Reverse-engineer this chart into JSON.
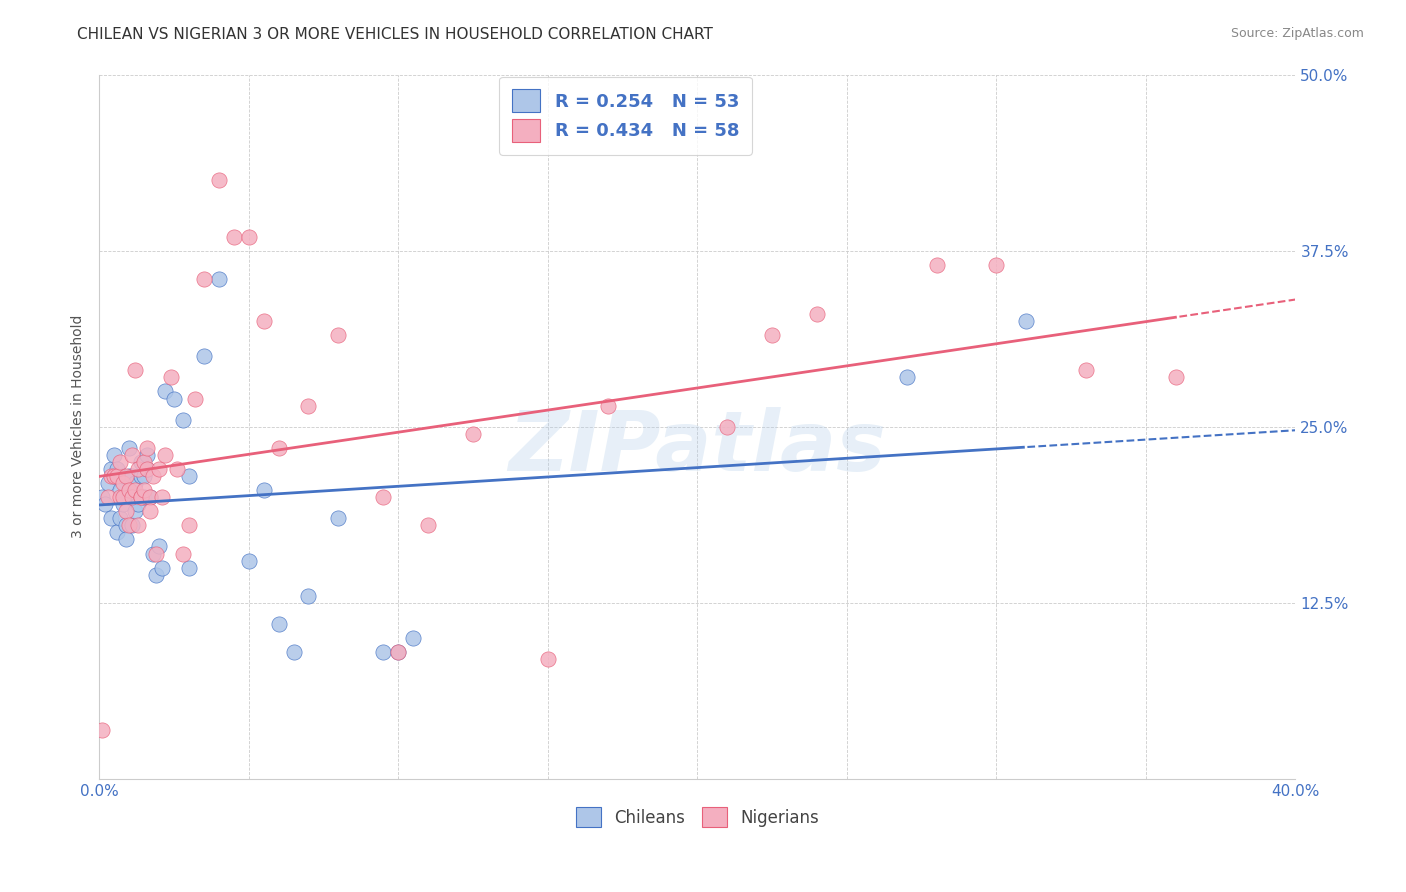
{
  "title": "CHILEAN VS NIGERIAN 3 OR MORE VEHICLES IN HOUSEHOLD CORRELATION CHART",
  "source": "Source: ZipAtlas.com",
  "ylabel": "3 or more Vehicles in Household",
  "watermark": "ZIPatlas",
  "xlim": [
    0.0,
    0.4
  ],
  "ylim": [
    0.0,
    0.5
  ],
  "xticks": [
    0.0,
    0.05,
    0.1,
    0.15,
    0.2,
    0.25,
    0.3,
    0.35,
    0.4
  ],
  "xticklabels": [
    "0.0%",
    "",
    "",
    "",
    "",
    "",
    "",
    "",
    "40.0%"
  ],
  "yticks": [
    0.0,
    0.125,
    0.25,
    0.375,
    0.5
  ],
  "yticklabels": [
    "",
    "12.5%",
    "25.0%",
    "37.5%",
    "50.0%"
  ],
  "chilean_R": 0.254,
  "chilean_N": 53,
  "nigerian_R": 0.434,
  "nigerian_N": 58,
  "chilean_color": "#aec6e8",
  "nigerian_color": "#f4afc0",
  "chilean_line_color": "#4472c4",
  "nigerian_line_color": "#e8607a",
  "legend_chilean_label": "R = 0.254   N = 53",
  "legend_nigerian_label": "R = 0.434   N = 58",
  "chilean_x": [
    0.001,
    0.002,
    0.003,
    0.004,
    0.004,
    0.005,
    0.005,
    0.006,
    0.006,
    0.007,
    0.007,
    0.008,
    0.008,
    0.009,
    0.009,
    0.01,
    0.01,
    0.01,
    0.011,
    0.011,
    0.012,
    0.012,
    0.013,
    0.013,
    0.014,
    0.014,
    0.015,
    0.015,
    0.016,
    0.016,
    0.017,
    0.018,
    0.019,
    0.02,
    0.021,
    0.022,
    0.025,
    0.028,
    0.03,
    0.03,
    0.035,
    0.04,
    0.05,
    0.055,
    0.06,
    0.065,
    0.07,
    0.08,
    0.095,
    0.1,
    0.105,
    0.27,
    0.31
  ],
  "chilean_y": [
    0.2,
    0.195,
    0.21,
    0.185,
    0.22,
    0.215,
    0.23,
    0.175,
    0.22,
    0.205,
    0.185,
    0.195,
    0.215,
    0.18,
    0.17,
    0.215,
    0.2,
    0.235,
    0.18,
    0.215,
    0.19,
    0.21,
    0.2,
    0.195,
    0.215,
    0.225,
    0.2,
    0.215,
    0.22,
    0.23,
    0.2,
    0.16,
    0.145,
    0.165,
    0.15,
    0.275,
    0.27,
    0.255,
    0.215,
    0.15,
    0.3,
    0.355,
    0.155,
    0.205,
    0.11,
    0.09,
    0.13,
    0.185,
    0.09,
    0.09,
    0.1,
    0.285,
    0.325
  ],
  "nigerian_x": [
    0.001,
    0.003,
    0.004,
    0.005,
    0.006,
    0.007,
    0.007,
    0.008,
    0.008,
    0.009,
    0.009,
    0.01,
    0.01,
    0.011,
    0.011,
    0.012,
    0.012,
    0.013,
    0.013,
    0.014,
    0.014,
    0.015,
    0.015,
    0.016,
    0.016,
    0.017,
    0.017,
    0.018,
    0.019,
    0.02,
    0.021,
    0.022,
    0.024,
    0.026,
    0.028,
    0.03,
    0.032,
    0.035,
    0.04,
    0.045,
    0.05,
    0.055,
    0.06,
    0.07,
    0.08,
    0.095,
    0.1,
    0.11,
    0.125,
    0.15,
    0.17,
    0.21,
    0.225,
    0.24,
    0.28,
    0.3,
    0.33,
    0.36
  ],
  "nigerian_y": [
    0.035,
    0.2,
    0.215,
    0.215,
    0.215,
    0.2,
    0.225,
    0.2,
    0.21,
    0.215,
    0.19,
    0.18,
    0.205,
    0.23,
    0.2,
    0.29,
    0.205,
    0.22,
    0.18,
    0.2,
    0.2,
    0.225,
    0.205,
    0.22,
    0.235,
    0.2,
    0.19,
    0.215,
    0.16,
    0.22,
    0.2,
    0.23,
    0.285,
    0.22,
    0.16,
    0.18,
    0.27,
    0.355,
    0.425,
    0.385,
    0.385,
    0.325,
    0.235,
    0.265,
    0.315,
    0.2,
    0.09,
    0.18,
    0.245,
    0.085,
    0.265,
    0.25,
    0.315,
    0.33,
    0.365,
    0.365,
    0.29,
    0.285
  ]
}
